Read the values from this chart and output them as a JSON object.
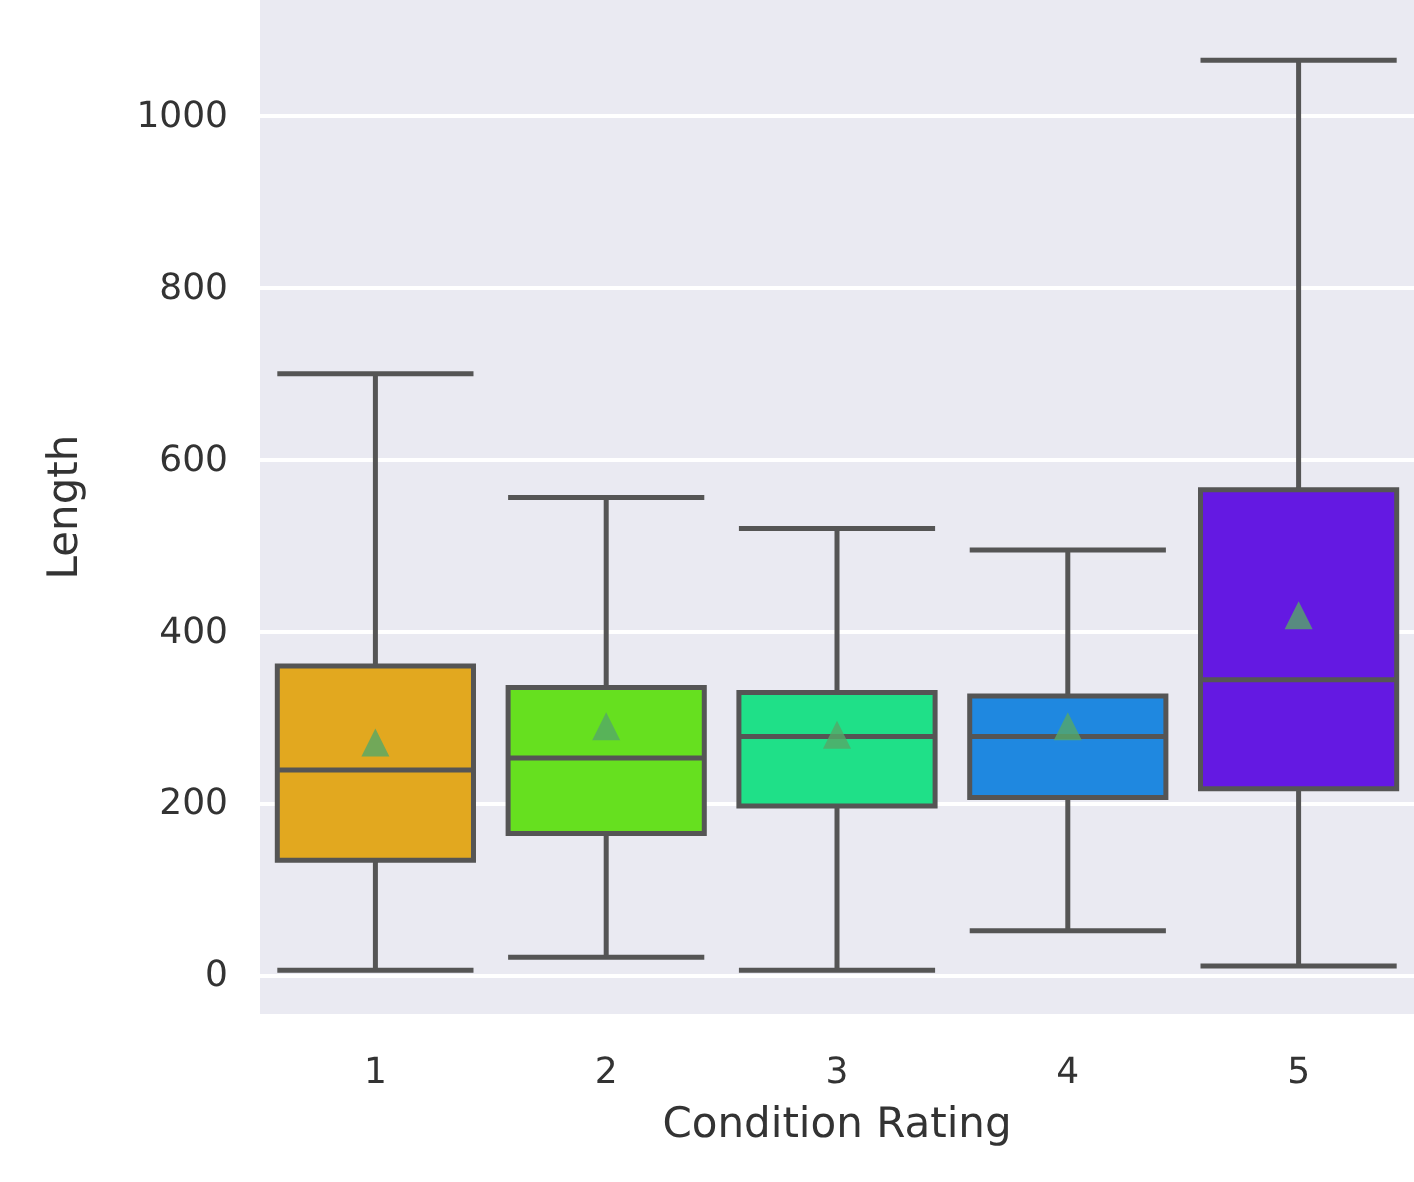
{
  "chart_data": {
    "type": "box",
    "xlabel": "Condition Rating",
    "ylabel": "Length",
    "categories": [
      "1",
      "2",
      "3",
      "4",
      "5"
    ],
    "colors": [
      "#e2a81f",
      "#66e01f",
      "#1fe088",
      "#1f88e0",
      "#6419e2"
    ],
    "boxes": [
      {
        "low": 6,
        "q1": 134,
        "median": 239,
        "q3": 360,
        "high": 700,
        "mean": 271
      },
      {
        "low": 21,
        "q1": 165,
        "median": 253,
        "q3": 335,
        "high": 556,
        "mean": 290
      },
      {
        "low": 6,
        "q1": 197,
        "median": 278,
        "q3": 329,
        "high": 520,
        "mean": 280
      },
      {
        "low": 52,
        "q1": 207,
        "median": 278,
        "q3": 325,
        "high": 495,
        "mean": 290
      },
      {
        "low": 11,
        "q1": 217,
        "median": 344,
        "q3": 565,
        "high": 1065,
        "mean": 419
      }
    ],
    "marker": "triangle",
    "ylim": [
      -45,
      1135
    ],
    "yticks": [
      0,
      200,
      400,
      600,
      800,
      1000
    ],
    "grid": "y"
  }
}
